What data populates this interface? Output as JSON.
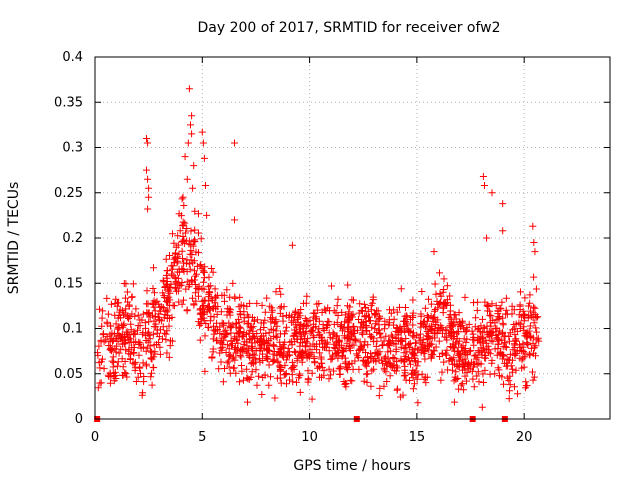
{
  "chart_data": {
    "type": "scatter",
    "title": "Day 200 of 2017, SRMTID for receiver ofw2",
    "xlabel": "GPS time / hours",
    "ylabel": "SRMTID / TECUs",
    "xlim": [
      0,
      24
    ],
    "ylim": [
      0,
      0.4
    ],
    "grid": true,
    "marker": "+",
    "color": "#ff0000",
    "x_ticks": [
      0,
      5,
      10,
      15,
      20
    ],
    "x_tick_labels": [
      "0",
      "5",
      "10",
      "15",
      "20"
    ],
    "y_ticks": [
      0,
      0.05,
      0.1,
      0.15,
      0.2,
      0.25,
      0.3,
      0.35,
      0.4
    ],
    "y_tick_labels": [
      "0",
      "0.05",
      "0.1",
      "0.15",
      "0.2",
      "0.25",
      "0.3",
      "0.35",
      "0.4"
    ],
    "trend": [
      {
        "x": 0.1,
        "y": 0.07
      },
      {
        "x": 0.5,
        "y": 0.085
      },
      {
        "x": 1.0,
        "y": 0.09
      },
      {
        "x": 1.5,
        "y": 0.095
      },
      {
        "x": 2.0,
        "y": 0.08
      },
      {
        "x": 2.5,
        "y": 0.09
      },
      {
        "x": 3.0,
        "y": 0.11
      },
      {
        "x": 3.5,
        "y": 0.14
      },
      {
        "x": 4.0,
        "y": 0.175
      },
      {
        "x": 4.4,
        "y": 0.19
      },
      {
        "x": 4.8,
        "y": 0.15
      },
      {
        "x": 5.2,
        "y": 0.12
      },
      {
        "x": 6.0,
        "y": 0.095
      },
      {
        "x": 7.0,
        "y": 0.085
      },
      {
        "x": 8.0,
        "y": 0.08
      },
      {
        "x": 9.0,
        "y": 0.085
      },
      {
        "x": 10.0,
        "y": 0.08
      },
      {
        "x": 11.0,
        "y": 0.085
      },
      {
        "x": 12.0,
        "y": 0.085
      },
      {
        "x": 13.0,
        "y": 0.09
      },
      {
        "x": 14.0,
        "y": 0.08
      },
      {
        "x": 15.0,
        "y": 0.075
      },
      {
        "x": 15.5,
        "y": 0.085
      },
      {
        "x": 16.0,
        "y": 0.11
      },
      {
        "x": 16.5,
        "y": 0.09
      },
      {
        "x": 17.0,
        "y": 0.08
      },
      {
        "x": 17.5,
        "y": 0.075
      },
      {
        "x": 18.0,
        "y": 0.08
      },
      {
        "x": 18.5,
        "y": 0.095
      },
      {
        "x": 19.0,
        "y": 0.085
      },
      {
        "x": 19.5,
        "y": 0.085
      },
      {
        "x": 20.0,
        "y": 0.09
      },
      {
        "x": 20.6,
        "y": 0.095
      }
    ],
    "spread": 0.025,
    "points_per_hour": 95,
    "x_range": [
      0.1,
      20.7
    ],
    "outliers": [
      {
        "x": 2.4,
        "y": 0.31
      },
      {
        "x": 2.45,
        "y": 0.305
      },
      {
        "x": 2.4,
        "y": 0.275
      },
      {
        "x": 2.45,
        "y": 0.265
      },
      {
        "x": 2.5,
        "y": 0.255
      },
      {
        "x": 2.5,
        "y": 0.245
      },
      {
        "x": 2.45,
        "y": 0.232
      },
      {
        "x": 4.4,
        "y": 0.365
      },
      {
        "x": 4.5,
        "y": 0.335
      },
      {
        "x": 4.45,
        "y": 0.325
      },
      {
        "x": 4.5,
        "y": 0.315
      },
      {
        "x": 4.35,
        "y": 0.305
      },
      {
        "x": 4.2,
        "y": 0.29
      },
      {
        "x": 4.6,
        "y": 0.28
      },
      {
        "x": 4.3,
        "y": 0.265
      },
      {
        "x": 4.55,
        "y": 0.255
      },
      {
        "x": 4.1,
        "y": 0.245
      },
      {
        "x": 5.0,
        "y": 0.317
      },
      {
        "x": 5.05,
        "y": 0.305
      },
      {
        "x": 5.1,
        "y": 0.288
      },
      {
        "x": 5.15,
        "y": 0.258
      },
      {
        "x": 5.2,
        "y": 0.225
      },
      {
        "x": 6.5,
        "y": 0.305
      },
      {
        "x": 6.5,
        "y": 0.22
      },
      {
        "x": 18.1,
        "y": 0.268
      },
      {
        "x": 18.15,
        "y": 0.258
      },
      {
        "x": 18.5,
        "y": 0.25
      },
      {
        "x": 18.25,
        "y": 0.2
      },
      {
        "x": 19.0,
        "y": 0.238
      },
      {
        "x": 19.0,
        "y": 0.208
      },
      {
        "x": 20.4,
        "y": 0.213
      },
      {
        "x": 20.45,
        "y": 0.195
      },
      {
        "x": 20.5,
        "y": 0.185
      },
      {
        "x": 18.05,
        "y": 0.013
      },
      {
        "x": 15.8,
        "y": 0.185
      },
      {
        "x": 9.2,
        "y": 0.192
      }
    ],
    "zero_markers": [
      0.1,
      12.2,
      17.6,
      19.1
    ]
  }
}
